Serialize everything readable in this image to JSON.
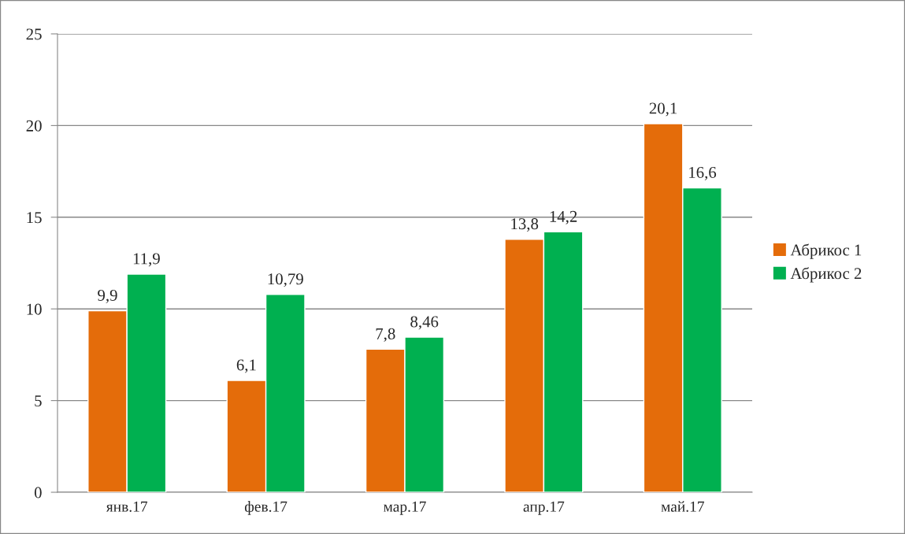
{
  "chart_data": {
    "type": "bar",
    "categories": [
      "янв.17",
      "фев.17",
      "мар.17",
      "апр.17",
      "май.17"
    ],
    "series": [
      {
        "name": "Абрикос 1",
        "color": "#e46c0a",
        "values": [
          9.9,
          6.1,
          7.8,
          13.8,
          20.1
        ],
        "value_labels": [
          "9,9",
          "6,1",
          "7,8",
          "13,8",
          "20,1"
        ]
      },
      {
        "name": "Абрикос 2",
        "color": "#00b050",
        "values": [
          11.9,
          10.79,
          8.46,
          14.2,
          16.6
        ],
        "value_labels": [
          "11,9",
          "10,79",
          "8,46",
          "14,2",
          "16,6"
        ]
      }
    ],
    "ylim": [
      0,
      25
    ],
    "yticks": [
      0,
      5,
      10,
      15,
      20,
      25
    ],
    "grid": "y",
    "legend": "right"
  }
}
